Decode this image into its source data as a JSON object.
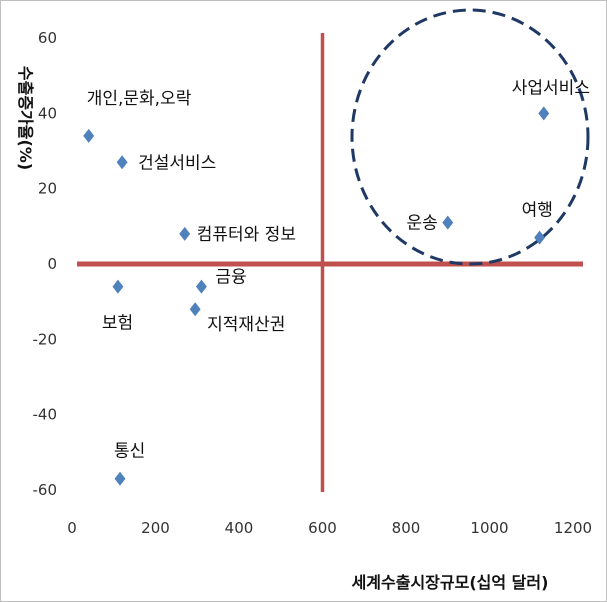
{
  "chart_data": {
    "type": "scatter",
    "title": "",
    "xlabel": "세계수출시장규모(십억 달러)",
    "ylabel": "수출증가율(%)",
    "xlim": [
      0,
      1200
    ],
    "ylim": [
      -60,
      60
    ],
    "xticks": [
      "0",
      "200",
      "400",
      "600",
      "800",
      "1000",
      "1200"
    ],
    "yticks": [
      "-60",
      "-40",
      "-20",
      "0",
      "20",
      "40",
      "60"
    ],
    "grid": false,
    "marker_color": "#4f81bd",
    "quadrant_line_color": "#c0504d",
    "circle_color": "#1f3864",
    "reference_lines": {
      "x": 600,
      "y": 0
    },
    "points": [
      {
        "label": "개인,문화,오락",
        "x": 40,
        "y": 34
      },
      {
        "label": "건설서비스",
        "x": 120,
        "y": 27
      },
      {
        "label": "컴퓨터와 정보",
        "x": 270,
        "y": 8
      },
      {
        "label": "보험",
        "x": 110,
        "y": -6
      },
      {
        "label": "금융",
        "x": 310,
        "y": -6
      },
      {
        "label": "지적재산권",
        "x": 295,
        "y": -12
      },
      {
        "label": "통신",
        "x": 115,
        "y": -57
      },
      {
        "label": "운송",
        "x": 900,
        "y": 11
      },
      {
        "label": "여행",
        "x": 1120,
        "y": 7
      },
      {
        "label": "사업서비스",
        "x": 1130,
        "y": 40
      }
    ]
  }
}
